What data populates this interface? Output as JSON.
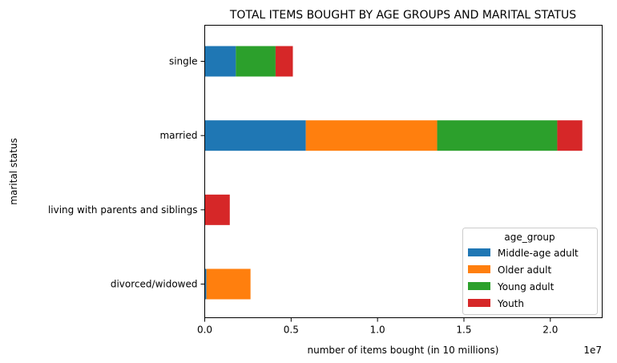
{
  "chart_data": {
    "type": "bar",
    "orientation": "horizontal",
    "stacked": true,
    "title": "TOTAL ITEMS BOUGHT BY AGE GROUPS AND MARITAL STATUS",
    "xlabel": "number of items bought (in 10 millions)",
    "ylabel": "marital status",
    "x_offset_label": "1e7",
    "xlim": [
      0,
      2.3
    ],
    "x_ticks": [
      0.0,
      0.5,
      1.0,
      1.5,
      2.0
    ],
    "x_tick_labels": [
      "0.0",
      "0.5",
      "1.0",
      "1.5",
      "2.0"
    ],
    "categories": [
      "divorced/widowed",
      "living with parents and siblings",
      "married",
      "single"
    ],
    "series": [
      {
        "name": "Middle-age adult",
        "color": "#1f77b4",
        "values": [
          0.01,
          0.0,
          0.585,
          0.18
        ]
      },
      {
        "name": "Older adult",
        "color": "#ff7f0e",
        "values": [
          0.255,
          0.0,
          0.76,
          0.0
        ]
      },
      {
        "name": "Young adult",
        "color": "#2ca02c",
        "values": [
          0.0,
          0.0,
          0.695,
          0.23
        ]
      },
      {
        "name": "Youth",
        "color": "#d62728",
        "values": [
          0.0,
          0.145,
          0.145,
          0.1
        ]
      }
    ],
    "legend": {
      "title": "age_group",
      "placement": "lower-right"
    },
    "grid": false
  }
}
